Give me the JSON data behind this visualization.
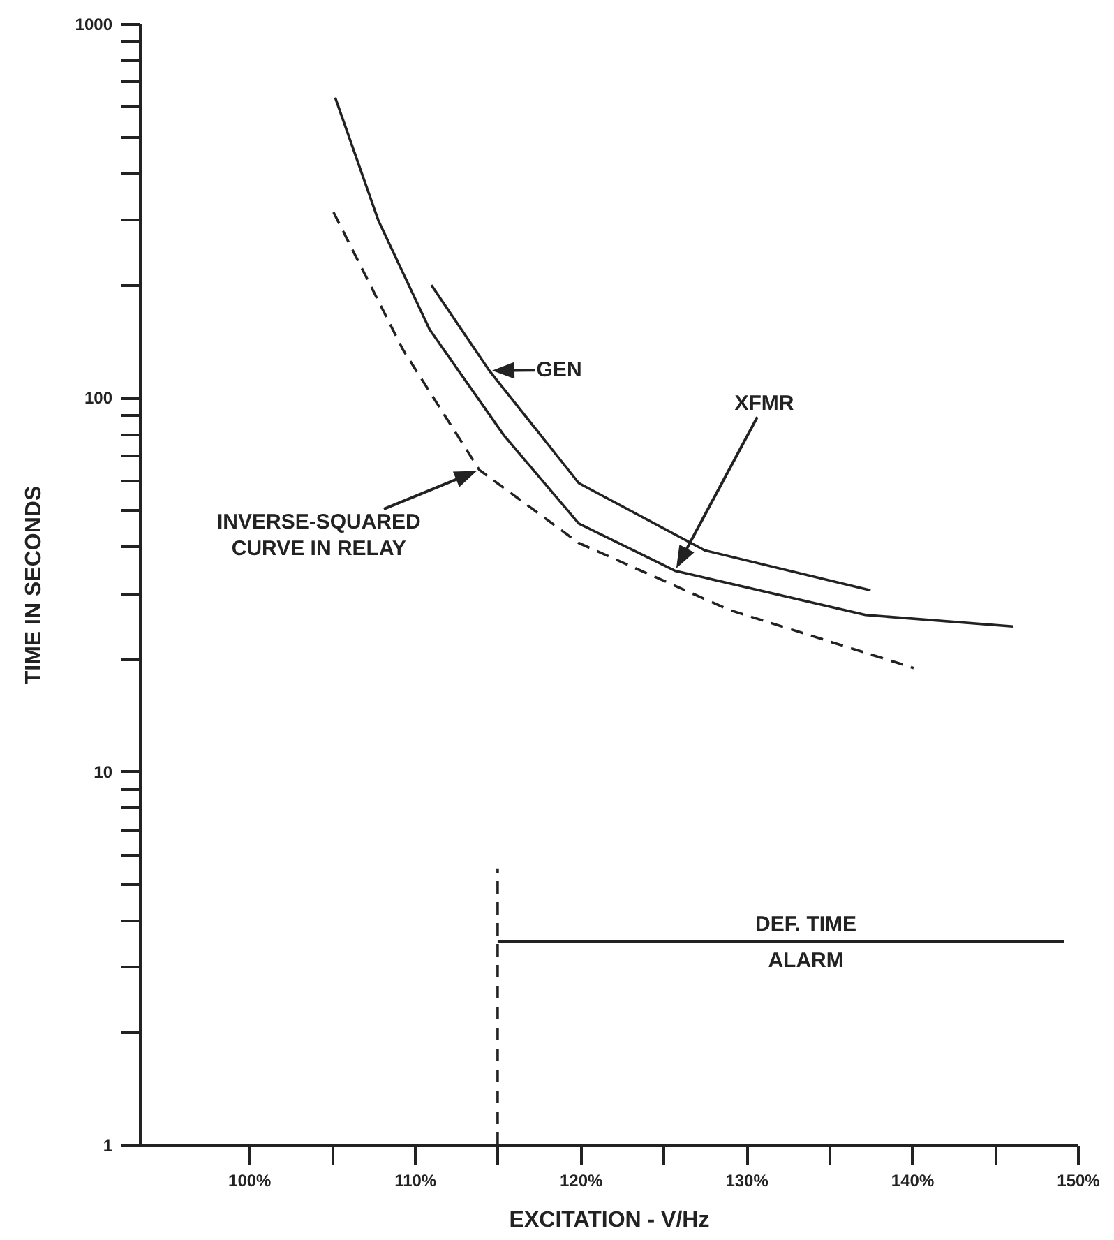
{
  "chart_data": {
    "type": "line",
    "xlabel": "EXCITATION - V/Hz",
    "ylabel": "TIME IN SECONDS",
    "xlim": [
      93.4,
      150
    ],
    "xticks": [
      {
        "value": 100,
        "label": "100%"
      },
      {
        "value": 105,
        "label": null
      },
      {
        "value": 110,
        "label": "110%"
      },
      {
        "value": 115,
        "label": null
      },
      {
        "value": 120,
        "label": "120%"
      },
      {
        "value": 125,
        "label": null
      },
      {
        "value": 130,
        "label": "130%"
      },
      {
        "value": 135,
        "label": null
      },
      {
        "value": 140,
        "label": "140%"
      },
      {
        "value": 145,
        "label": null
      },
      {
        "value": 150,
        "label": "150%"
      }
    ],
    "ylim": [
      1,
      1000
    ],
    "yticks": [
      1,
      {
        "value": 2,
        "label": null
      },
      {
        "value": 3,
        "label": null
      },
      {
        "value": 4,
        "label": null
      },
      {
        "value": 5,
        "label": null
      },
      {
        "value": 6,
        "label": null
      },
      {
        "value": 7,
        "label": null
      },
      {
        "value": 8,
        "label": null
      },
      {
        "value": 9,
        "label": null
      },
      10,
      {
        "value": 20,
        "label": null
      },
      {
        "value": 30,
        "label": null
      },
      {
        "value": 40,
        "label": null
      },
      {
        "value": 50,
        "label": null
      },
      {
        "value": 60,
        "label": null
      },
      {
        "value": 70,
        "label": null
      },
      {
        "value": 80,
        "label": null
      },
      {
        "value": 90,
        "label": null
      },
      100,
      {
        "value": 200,
        "label": null
      },
      {
        "value": 300,
        "label": null
      },
      {
        "value": 400,
        "label": null
      },
      {
        "value": 500,
        "label": null
      },
      {
        "value": 600,
        "label": null
      },
      {
        "value": 700,
        "label": null
      },
      {
        "value": 800,
        "label": null
      },
      {
        "value": 900,
        "label": null
      },
      1000
    ],
    "log": "y",
    "grid": false,
    "marker": "none",
    "series": [
      {
        "color": "#222222",
        "line_style": "solid",
        "x": [
          111,
          114.5,
          119.9,
          127.5,
          137.5
        ],
        "values": [
          200,
          118,
          59,
          39,
          30.5
        ]
      },
      {
        "color": "#222222",
        "line_style": "solid",
        "x": [
          105.2,
          107.8,
          110.9,
          115.4,
          119.9,
          125.7,
          137.2,
          146.1
        ],
        "values": [
          635,
          298,
          152,
          79,
          46,
          34.4,
          26.2,
          24.4
        ]
      },
      {
        "color": "#222222",
        "line_style": "dashed",
        "x": [
          105.1,
          109.3,
          113.9,
          119.9,
          129,
          140.1
        ],
        "values": [
          313,
          134,
          64,
          40.8,
          27,
          18.9
        ]
      },
      {
        "color": "#222222",
        "line_style": "solid",
        "x": [
          115,
          149.2
        ],
        "values": [
          3.5,
          3.5
        ]
      },
      {
        "color": "#222222",
        "line_style": "dashed",
        "x": [
          115,
          115
        ],
        "values": [
          1,
          5.5
        ]
      }
    ],
    "annotations": [
      {
        "text": "GEN",
        "x": 114.5,
        "y": 118
      },
      {
        "text": "XFMR",
        "x": 125.7,
        "y": 34.4
      },
      {
        "text": "INVERSE-SQUARED\nCURVE IN RELAY",
        "x": 113.9,
        "y": 64
      },
      {
        "text": "DEF. TIME",
        "x": 133.6,
        "y": 3.5
      },
      {
        "text": "ALARM",
        "x": 133.6,
        "y": 3.5
      }
    ]
  }
}
